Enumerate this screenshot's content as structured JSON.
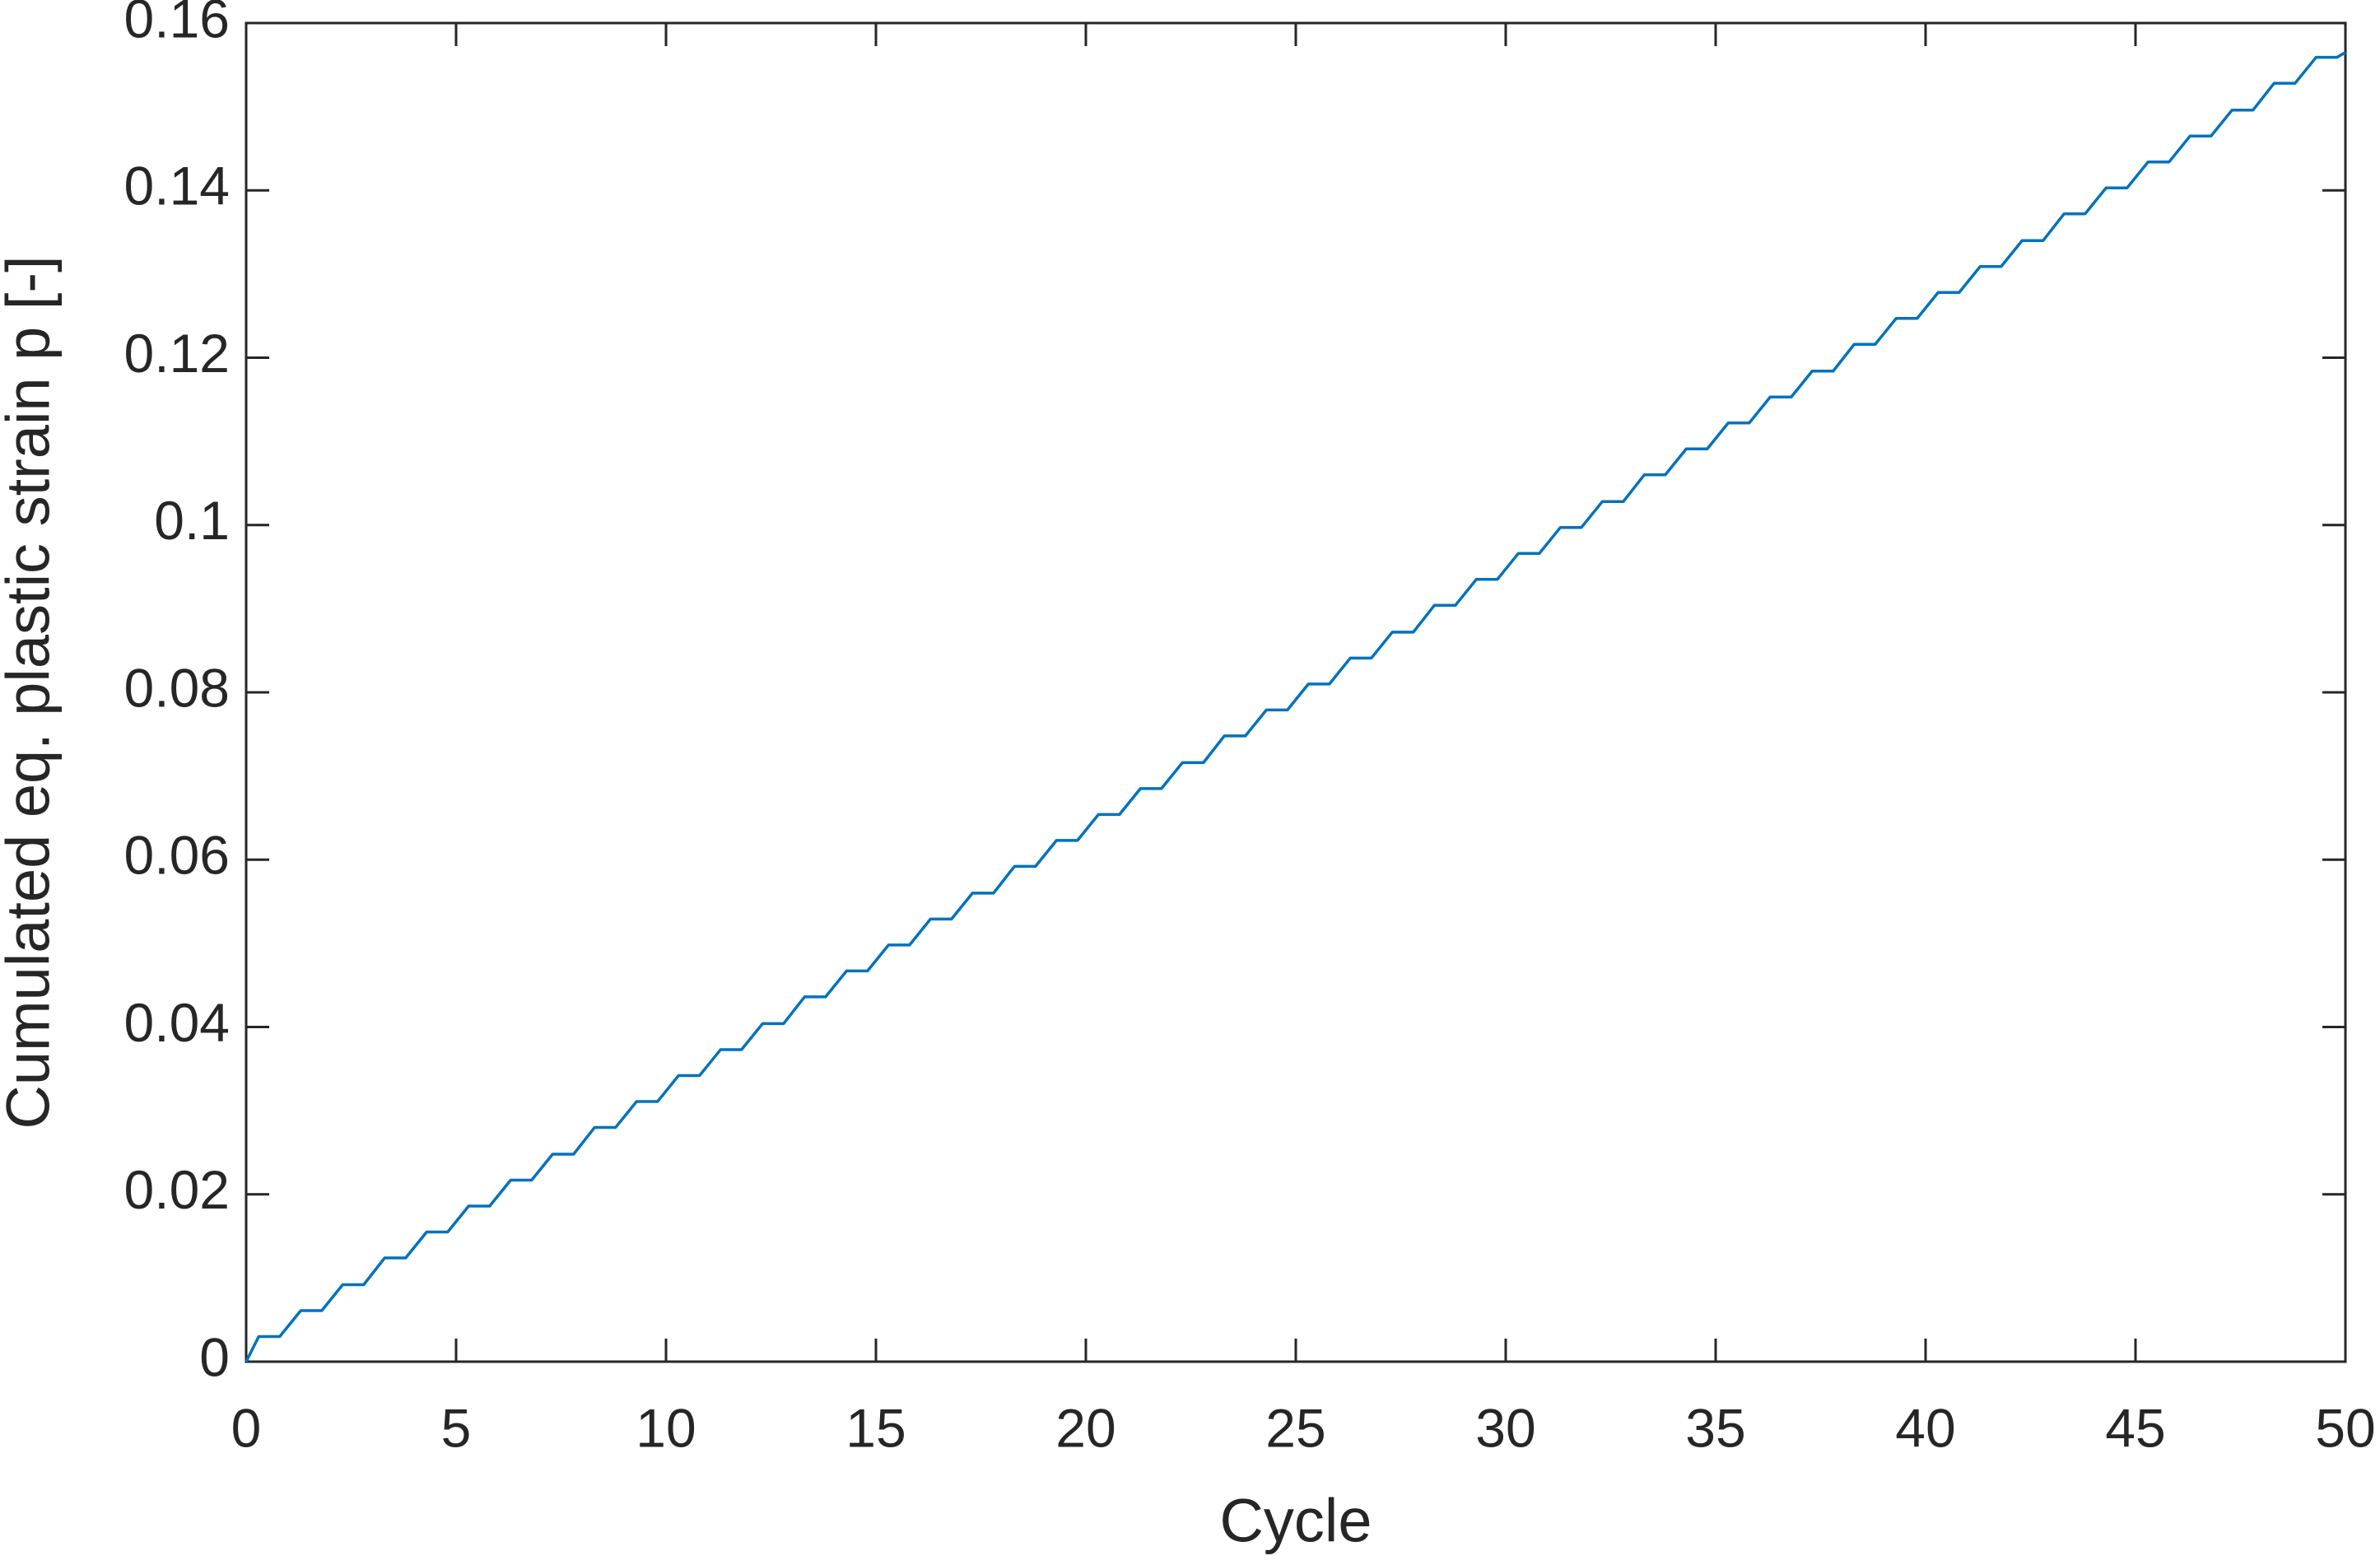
{
  "chart_data": {
    "type": "line",
    "xlabel": "Cycle",
    "ylabel": "Cumulated eq. plastic strain p [-]",
    "color": "#0072bd",
    "x": [
      0,
      0.3,
      0.8,
      1.3,
      1.8,
      2.3,
      2.8,
      3.3,
      3.8,
      4.3,
      4.8,
      5.3,
      5.8,
      6.3,
      6.8,
      7.3,
      7.8,
      8.3,
      8.8,
      9.3,
      9.8,
      10.3,
      10.8,
      11.3,
      11.8,
      12.3,
      12.8,
      13.3,
      13.8,
      14.3,
      14.8,
      15.3,
      15.8,
      16.3,
      16.8,
      17.3,
      17.8,
      18.3,
      18.8,
      19.3,
      19.8,
      20.3,
      20.8,
      21.3,
      21.8,
      22.3,
      22.8,
      23.3,
      23.8,
      24.3,
      24.8,
      25.3,
      25.8,
      26.3,
      26.8,
      27.3,
      27.8,
      28.3,
      28.8,
      29.3,
      29.8,
      30.3,
      30.8,
      31.3,
      31.8,
      32.3,
      32.8,
      33.3,
      33.8,
      34.3,
      34.8,
      35.3,
      35.8,
      36.3,
      36.8,
      37.3,
      37.8,
      38.3,
      38.8,
      39.3,
      39.8,
      40.3,
      40.8,
      41.3,
      41.8,
      42.3,
      42.8,
      43.3,
      43.8,
      44.3,
      44.8,
      45.3,
      45.8,
      46.3,
      46.8,
      47.3,
      47.8,
      48.3,
      48.8,
      49.3,
      49.8,
      50
    ],
    "values": [
      0,
      0.003,
      0.003,
      0.0061,
      0.0061,
      0.0092,
      0.0092,
      0.0124,
      0.0124,
      0.0155,
      0.0155,
      0.0186,
      0.0186,
      0.0217,
      0.0217,
      0.0248,
      0.0248,
      0.028,
      0.028,
      0.0311,
      0.0311,
      0.0342,
      0.0342,
      0.0373,
      0.0373,
      0.0404,
      0.0404,
      0.0436,
      0.0436,
      0.0467,
      0.0467,
      0.0498,
      0.0498,
      0.0529,
      0.0529,
      0.056,
      0.056,
      0.0592,
      0.0592,
      0.0623,
      0.0623,
      0.0654,
      0.0654,
      0.0685,
      0.0685,
      0.0716,
      0.0716,
      0.0748,
      0.0748,
      0.0779,
      0.0779,
      0.081,
      0.081,
      0.0841,
      0.0841,
      0.0872,
      0.0872,
      0.0904,
      0.0904,
      0.0935,
      0.0935,
      0.0966,
      0.0966,
      0.0997,
      0.0997,
      0.1028,
      0.1028,
      0.106,
      0.106,
      0.1091,
      0.1091,
      0.1122,
      0.1122,
      0.1153,
      0.1153,
      0.1184,
      0.1184,
      0.1216,
      0.1216,
      0.1247,
      0.1247,
      0.1278,
      0.1278,
      0.1309,
      0.1309,
      0.134,
      0.134,
      0.1372,
      0.1372,
      0.1403,
      0.1403,
      0.1434,
      0.1434,
      0.1465,
      0.1465,
      0.1496,
      0.1496,
      0.1528,
      0.1528,
      0.1559,
      0.1559,
      0.1565
    ],
    "xlim": [
      0,
      50
    ],
    "xticks": [
      0,
      5,
      10,
      15,
      20,
      25,
      30,
      35,
      40,
      45,
      50
    ],
    "ylim": [
      0,
      0.16
    ],
    "yticks": [
      0,
      0.02,
      0.04,
      0.06,
      0.08,
      0.1,
      0.12,
      0.14,
      0.16
    ],
    "grid": false
  }
}
